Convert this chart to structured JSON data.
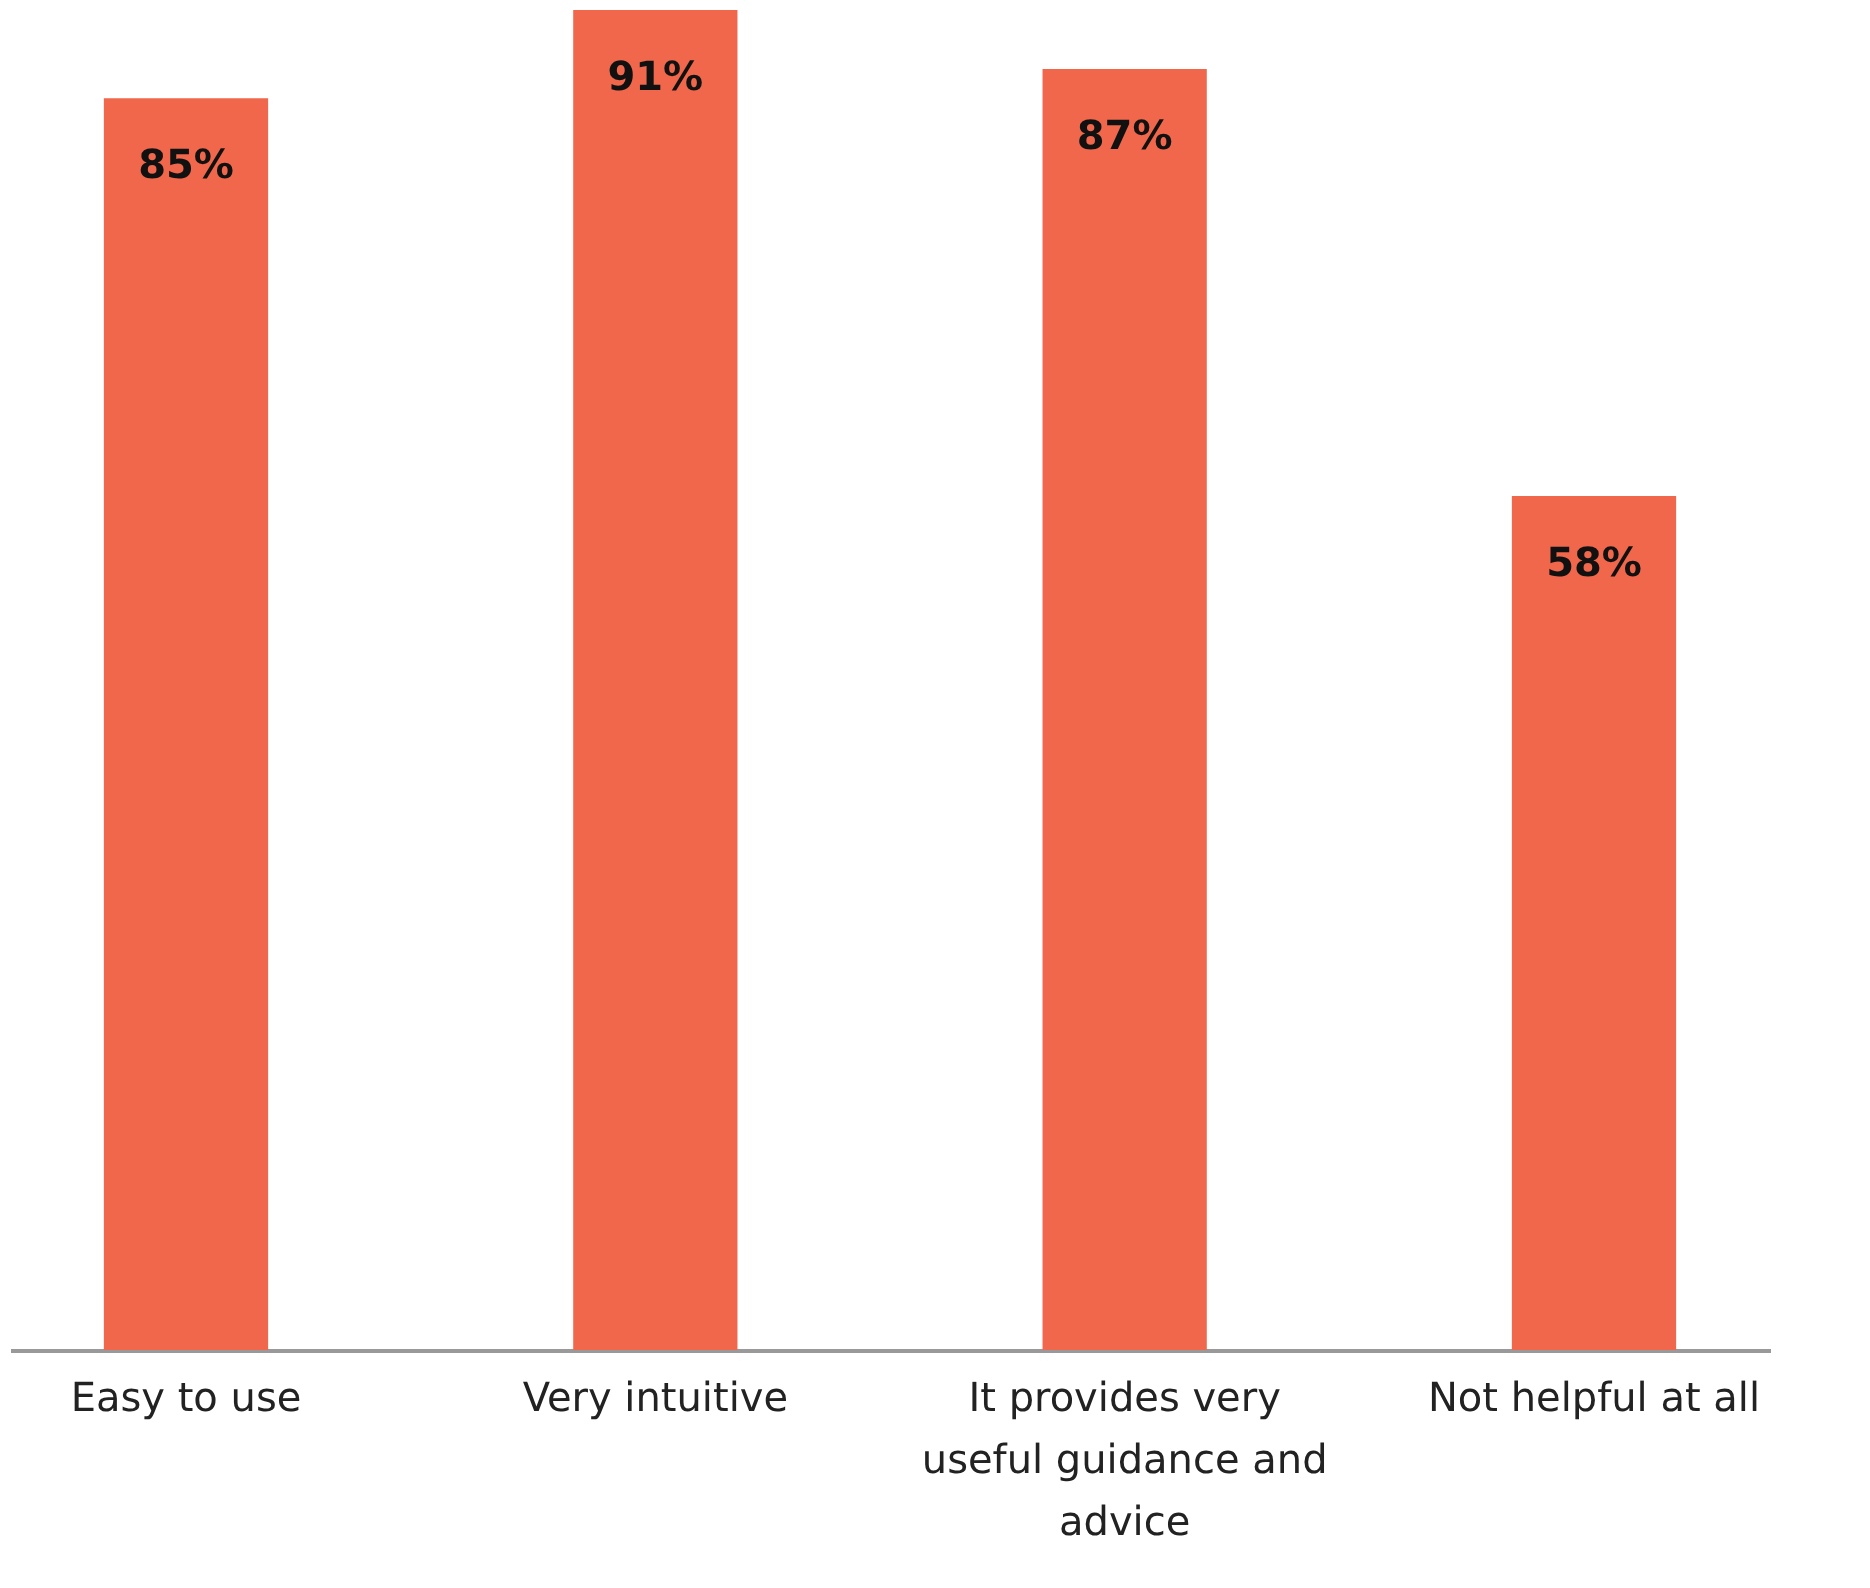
{
  "chart_data": {
    "type": "bar",
    "categories": [
      "Easy to use",
      "Very intuitive",
      "It provides very useful guidance and advice",
      "Not helpful at all"
    ],
    "values": [
      85,
      91,
      87,
      58
    ],
    "value_labels": [
      "85%",
      "91%",
      "87%",
      "58%"
    ],
    "color": "#f0674b",
    "grid": false
  }
}
